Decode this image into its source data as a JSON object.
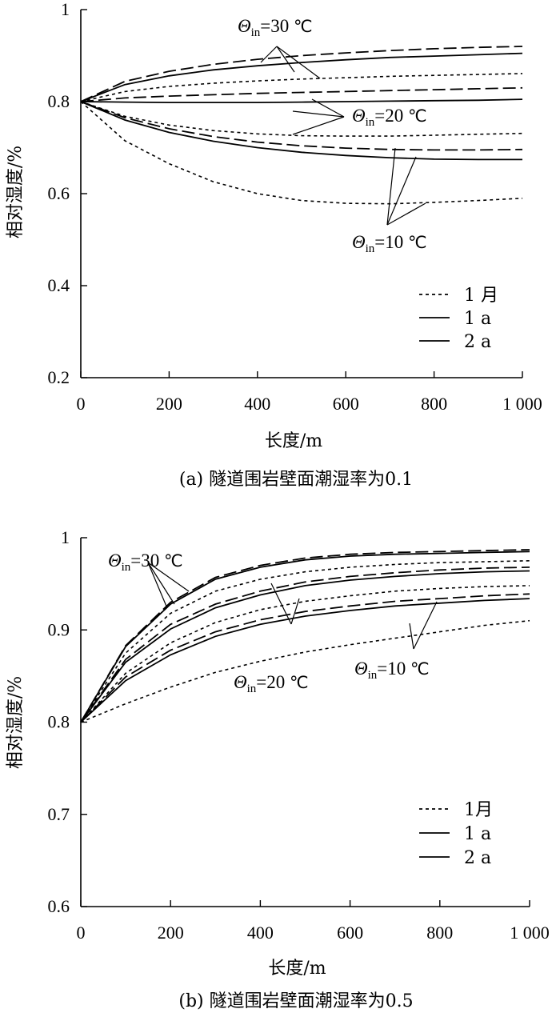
{
  "chart_data": [
    {
      "type": "line",
      "caption": "(a) 隧道围岩壁面潮湿率为0.1",
      "xlabel": "长度/m",
      "ylabel": "相对湿度/%",
      "xlim": [
        0,
        1000
      ],
      "ylim": [
        0.2,
        1.0
      ],
      "xticks": [
        0,
        200,
        400,
        600,
        800,
        1000
      ],
      "xtick_labels": [
        "0",
        "200",
        "400",
        "600",
        "800",
        "1 000"
      ],
      "yticks": [
        0.2,
        0.4,
        0.6,
        0.8,
        1.0
      ],
      "ytick_labels": [
        "0.2",
        "0.4",
        "0.6",
        "0.8",
        "1"
      ],
      "legend": {
        "position": "bottom-right",
        "entries": [
          {
            "style": "dotted",
            "label": "1 月"
          },
          {
            "style": "solid",
            "label": "1 a"
          },
          {
            "style": "dashed",
            "label": "2 a"
          }
        ]
      },
      "annotations": [
        {
          "symbol": "Θ",
          "sub": "in",
          "text": "=30 ",
          "unit": "℃"
        },
        {
          "symbol": "Θ",
          "sub": "in",
          "text": "=20 ",
          "unit": "℃"
        },
        {
          "symbol": "Θ",
          "sub": "in",
          "text": "=10 ",
          "unit": "℃"
        }
      ],
      "x": [
        0,
        100,
        200,
        300,
        400,
        500,
        600,
        700,
        800,
        900,
        1000
      ],
      "series": [
        {
          "group": "Θin=30 ℃",
          "style": "dashed",
          "values": [
            0.8,
            0.844,
            0.866,
            0.881,
            0.892,
            0.9,
            0.906,
            0.911,
            0.915,
            0.918,
            0.92
          ]
        },
        {
          "group": "Θin=30 ℃",
          "style": "solid",
          "values": [
            0.8,
            0.837,
            0.856,
            0.869,
            0.878,
            0.885,
            0.891,
            0.896,
            0.899,
            0.902,
            0.905
          ]
        },
        {
          "group": "Θin=30 ℃",
          "style": "dotted",
          "values": [
            0.8,
            0.822,
            0.833,
            0.84,
            0.845,
            0.849,
            0.852,
            0.855,
            0.857,
            0.859,
            0.861
          ]
        },
        {
          "group": "Θin=20 ℃",
          "style": "dashed",
          "values": [
            0.8,
            0.808,
            0.812,
            0.815,
            0.818,
            0.82,
            0.822,
            0.824,
            0.826,
            0.828,
            0.83
          ]
        },
        {
          "group": "Θin=20 ℃",
          "style": "solid",
          "values": [
            0.8,
            0.799,
            0.798,
            0.798,
            0.798,
            0.799,
            0.8,
            0.801,
            0.802,
            0.803,
            0.805
          ]
        },
        {
          "group": "Θin=20 ℃",
          "style": "dotted",
          "values": [
            0.8,
            0.768,
            0.749,
            0.737,
            0.73,
            0.726,
            0.725,
            0.725,
            0.727,
            0.729,
            0.731
          ]
        },
        {
          "group": "Θin=10 ℃",
          "style": "dashed",
          "values": [
            0.8,
            0.765,
            0.741,
            0.724,
            0.712,
            0.704,
            0.699,
            0.696,
            0.695,
            0.695,
            0.696
          ]
        },
        {
          "group": "Θin=10 ℃",
          "style": "solid",
          "values": [
            0.8,
            0.76,
            0.733,
            0.714,
            0.7,
            0.69,
            0.683,
            0.678,
            0.675,
            0.674,
            0.674
          ]
        },
        {
          "group": "Θin=10 ℃",
          "style": "dotted",
          "values": [
            0.8,
            0.715,
            0.665,
            0.626,
            0.6,
            0.585,
            0.579,
            0.578,
            0.581,
            0.585,
            0.59
          ]
        }
      ]
    },
    {
      "type": "line",
      "caption": "(b) 隧道围岩壁面潮湿率为0.5",
      "xlabel": "长度/m",
      "ylabel": "相对湿度/%",
      "xlim": [
        0,
        1000
      ],
      "ylim": [
        0.6,
        1.0
      ],
      "xticks": [
        0,
        200,
        400,
        600,
        800,
        1000
      ],
      "xtick_labels": [
        "0",
        "200",
        "400",
        "600",
        "800",
        "1 000"
      ],
      "yticks": [
        0.6,
        0.7,
        0.8,
        0.9,
        1.0
      ],
      "ytick_labels": [
        "0.6",
        "0.7",
        "0.8",
        "0.9",
        "1"
      ],
      "legend": {
        "position": "bottom-right",
        "entries": [
          {
            "style": "dotted",
            "label": "1月"
          },
          {
            "style": "solid",
            "label": "1 a"
          },
          {
            "style": "dashed",
            "label": "2 a"
          }
        ]
      },
      "annotations": [
        {
          "symbol": "Θ",
          "sub": "in",
          "text": "=30 ",
          "unit": "℃"
        },
        {
          "symbol": "Θ",
          "sub": "in",
          "text": "=20 ",
          "unit": "℃"
        },
        {
          "symbol": "Θ",
          "sub": "in",
          "text": "=10 ",
          "unit": "℃"
        }
      ],
      "x": [
        0,
        100,
        200,
        300,
        400,
        500,
        600,
        700,
        800,
        900,
        1000
      ],
      "series": [
        {
          "group": "Θin=30 ℃",
          "style": "dashed",
          "values": [
            0.8,
            0.883,
            0.93,
            0.957,
            0.97,
            0.978,
            0.982,
            0.984,
            0.985,
            0.986,
            0.987
          ]
        },
        {
          "group": "Θin=30 ℃",
          "style": "solid",
          "values": [
            0.8,
            0.882,
            0.928,
            0.955,
            0.968,
            0.976,
            0.98,
            0.982,
            0.983,
            0.984,
            0.985
          ]
        },
        {
          "group": "Θin=30 ℃",
          "style": "dotted",
          "values": [
            0.8,
            0.875,
            0.918,
            0.942,
            0.955,
            0.963,
            0.968,
            0.971,
            0.973,
            0.974,
            0.975
          ]
        },
        {
          "group": "Θin=20 ℃",
          "style": "dashed",
          "values": [
            0.8,
            0.868,
            0.906,
            0.928,
            0.942,
            0.952,
            0.958,
            0.962,
            0.965,
            0.967,
            0.968
          ]
        },
        {
          "group": "Θin=20 ℃",
          "style": "solid",
          "values": [
            0.8,
            0.865,
            0.901,
            0.924,
            0.938,
            0.948,
            0.954,
            0.958,
            0.961,
            0.963,
            0.964
          ]
        },
        {
          "group": "Θin=20 ℃",
          "style": "dotted",
          "values": [
            0.8,
            0.853,
            0.886,
            0.908,
            0.922,
            0.931,
            0.937,
            0.942,
            0.945,
            0.947,
            0.948
          ]
        },
        {
          "group": "Θin=10 ℃",
          "style": "dashed",
          "values": [
            0.8,
            0.849,
            0.878,
            0.898,
            0.911,
            0.92,
            0.926,
            0.931,
            0.934,
            0.937,
            0.939
          ]
        },
        {
          "group": "Θin=10 ℃",
          "style": "solid",
          "values": [
            0.8,
            0.845,
            0.873,
            0.893,
            0.906,
            0.915,
            0.921,
            0.926,
            0.929,
            0.932,
            0.934
          ]
        },
        {
          "group": "Θin=10 ℃",
          "style": "dotted",
          "values": [
            0.8,
            0.82,
            0.838,
            0.854,
            0.866,
            0.876,
            0.884,
            0.891,
            0.898,
            0.905,
            0.91
          ]
        }
      ]
    }
  ]
}
